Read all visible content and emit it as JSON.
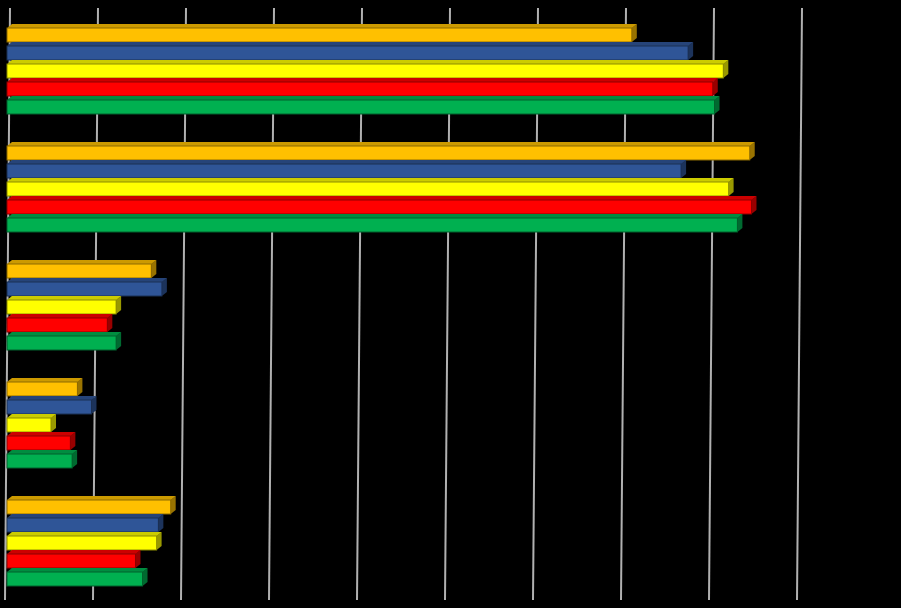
{
  "chart_data": {
    "type": "bar",
    "orientation": "horizontal",
    "style": "3d",
    "background": "#000000",
    "grid": true,
    "legend": "none",
    "xlim": [
      0,
      4.5
    ],
    "categories": [
      "",
      "",
      "",
      "",
      ""
    ],
    "series": [
      {
        "color": "#FFC000",
        "values": [
          3.55,
          4.22,
          0.82,
          0.4,
          0.93
        ]
      },
      {
        "color": "#2F5597",
        "values": [
          3.87,
          3.83,
          0.88,
          0.48,
          0.86
        ]
      },
      {
        "color": "#FFFF00",
        "values": [
          4.07,
          4.1,
          0.62,
          0.25,
          0.85
        ]
      },
      {
        "color": "#FF0000",
        "values": [
          4.01,
          4.23,
          0.57,
          0.36,
          0.73
        ]
      },
      {
        "color": "#00B050",
        "values": [
          4.02,
          4.15,
          0.62,
          0.37,
          0.77
        ]
      }
    ]
  }
}
